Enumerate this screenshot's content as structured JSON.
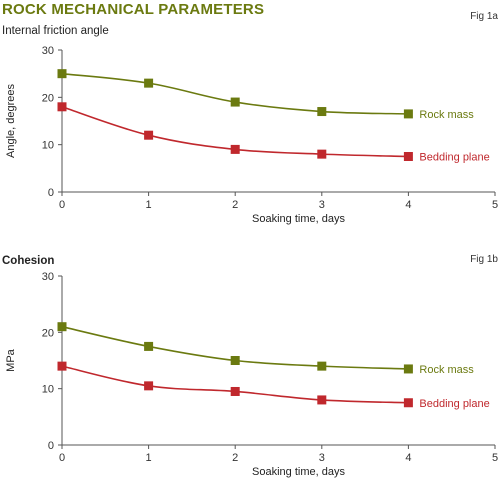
{
  "header": {
    "title": "ROCK MECHANICAL PARAMETERS",
    "title_color": "#6b7a10"
  },
  "chart_data": [
    {
      "type": "line",
      "fig_label": "Fig 1a",
      "subtitle": "Internal friction angle",
      "xlabel": "Soaking time, days",
      "ylabel": "Angle, degrees",
      "xlim": [
        0,
        5
      ],
      "ylim": [
        0,
        30
      ],
      "xticks": [
        "0",
        "1",
        "2",
        "3",
        "4",
        "5"
      ],
      "yticks": [
        "0",
        "10",
        "20",
        "30"
      ],
      "x": [
        0,
        1,
        2,
        3,
        4
      ],
      "grid": false,
      "series": [
        {
          "name": "Rock mass",
          "values": [
            25,
            23,
            19,
            17,
            16.5
          ],
          "color": "#6b7a10"
        },
        {
          "name": "Bedding plane",
          "values": [
            18,
            12,
            9,
            8,
            7.5
          ],
          "color": "#c0282d"
        }
      ]
    },
    {
      "type": "line",
      "fig_label": "Fig 1b",
      "subtitle": "Cohesion",
      "xlabel": "Soaking time, days",
      "ylabel": "MPa",
      "xlim": [
        0,
        5
      ],
      "ylim": [
        0,
        30
      ],
      "xticks": [
        "0",
        "1",
        "2",
        "3",
        "4",
        "5"
      ],
      "yticks": [
        "0",
        "10",
        "20",
        "30"
      ],
      "x": [
        0,
        1,
        2,
        3,
        4
      ],
      "grid": false,
      "series": [
        {
          "name": "Rock mass",
          "values": [
            21,
            17.5,
            15,
            14,
            13.5
          ],
          "color": "#6b7a10"
        },
        {
          "name": "Bedding plane",
          "values": [
            14,
            10.5,
            9.5,
            8,
            7.5
          ],
          "color": "#c0282d"
        }
      ]
    }
  ]
}
